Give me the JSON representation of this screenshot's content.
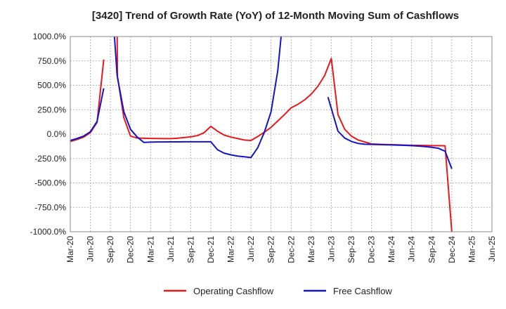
{
  "chart_data": {
    "type": "line",
    "title": "[3420]  Trend of Growth Rate (YoY) of 12-Month Moving Sum of Cashflows",
    "xlabel": "",
    "ylabel": "",
    "ylim": [
      -1000,
      1000
    ],
    "y_ticks": [
      1000,
      750,
      500,
      250,
      0,
      -250,
      -500,
      -750,
      -1000
    ],
    "y_tick_labels": [
      "1000.0%",
      "750.0%",
      "500.0%",
      "250.0%",
      "0.0%",
      "-250.0%",
      "-500.0%",
      "-750.0%",
      "-1000.0%"
    ],
    "x_tick_labels": [
      "Mar-20",
      "Jun-20",
      "Sep-20",
      "Dec-20",
      "Mar-21",
      "Jun-21",
      "Sep-21",
      "Dec-21",
      "Mar-22",
      "Jun-22",
      "Sep-22",
      "Dec-22",
      "Mar-23",
      "Jun-23",
      "Sep-23",
      "Dec-23",
      "Mar-24",
      "Jun-24",
      "Sep-24",
      "Dec-24",
      "Mar-25",
      "Jun-25"
    ],
    "grid": true,
    "legend_position": "bottom-center",
    "series": [
      {
        "name": "Operating Cashflow",
        "color": "#e8191a",
        "points": [
          [
            0,
            -75
          ],
          [
            1,
            -55
          ],
          [
            2,
            -30
          ],
          [
            3,
            15
          ],
          [
            4,
            120
          ],
          [
            5,
            765
          ],
          [
            6,
            null
          ],
          [
            7,
            1000
          ],
          [
            7.05,
            590
          ],
          [
            8,
            170
          ],
          [
            9,
            -20
          ],
          [
            10,
            -40
          ],
          [
            11,
            -42
          ],
          [
            12,
            -44
          ],
          [
            13,
            -45
          ],
          [
            14,
            -46
          ],
          [
            15,
            -46
          ],
          [
            16,
            -42
          ],
          [
            17,
            -35
          ],
          [
            18,
            -28
          ],
          [
            19,
            -15
          ],
          [
            20,
            15
          ],
          [
            21,
            80
          ],
          [
            22,
            30
          ],
          [
            23,
            -10
          ],
          [
            24,
            -30
          ],
          [
            25,
            -45
          ],
          [
            26,
            -60
          ],
          [
            27,
            -65
          ],
          [
            28,
            -25
          ],
          [
            29,
            20
          ],
          [
            30,
            70
          ],
          [
            31,
            135
          ],
          [
            32,
            200
          ],
          [
            33,
            270
          ],
          [
            34,
            305
          ],
          [
            35,
            350
          ],
          [
            36,
            410
          ],
          [
            37,
            490
          ],
          [
            38,
            600
          ],
          [
            39,
            775
          ],
          [
            40,
            200
          ],
          [
            41,
            50
          ],
          [
            42,
            -20
          ],
          [
            43,
            -60
          ],
          [
            44,
            -80
          ],
          [
            45,
            -100
          ],
          [
            46,
            -103
          ],
          [
            47,
            -106
          ],
          [
            48,
            -108
          ],
          [
            49,
            -110
          ],
          [
            50,
            -112
          ],
          [
            51,
            -114
          ],
          [
            52,
            -115
          ],
          [
            53,
            -116
          ],
          [
            54,
            -118
          ],
          [
            55,
            -118
          ],
          [
            56,
            -120
          ],
          [
            57,
            -1000
          ]
        ]
      },
      {
        "name": "Free Cashflow",
        "color": "#1414c8",
        "points": [
          [
            0,
            -65
          ],
          [
            1,
            -45
          ],
          [
            2,
            -20
          ],
          [
            3,
            25
          ],
          [
            4,
            130
          ],
          [
            5,
            470
          ],
          [
            6,
            null
          ],
          [
            6.6,
            1000
          ],
          [
            7,
            600
          ],
          [
            8,
            230
          ],
          [
            9,
            50
          ],
          [
            10,
            -30
          ],
          [
            11,
            -85
          ],
          [
            12,
            -82
          ],
          [
            13,
            -80
          ],
          [
            14,
            -80
          ],
          [
            15,
            -79
          ],
          [
            16,
            -79
          ],
          [
            17,
            -78
          ],
          [
            18,
            -78
          ],
          [
            19,
            -78
          ],
          [
            20,
            -78
          ],
          [
            21,
            -78
          ],
          [
            22,
            -160
          ],
          [
            23,
            -195
          ],
          [
            24,
            -212
          ],
          [
            25,
            -225
          ],
          [
            26,
            -232
          ],
          [
            27,
            -240
          ],
          [
            28,
            -140
          ],
          [
            29,
            20
          ],
          [
            30,
            230
          ],
          [
            31,
            650
          ],
          [
            31.5,
            1000
          ],
          [
            32,
            null
          ],
          [
            38.5,
            380
          ],
          [
            40,
            30
          ],
          [
            41,
            -40
          ],
          [
            42,
            -75
          ],
          [
            43,
            -95
          ],
          [
            44,
            -103
          ],
          [
            45,
            -105
          ],
          [
            46,
            -107
          ],
          [
            47,
            -109
          ],
          [
            48,
            -111
          ],
          [
            49,
            -113
          ],
          [
            50,
            -115
          ],
          [
            51,
            -118
          ],
          [
            52,
            -122
          ],
          [
            53,
            -128
          ],
          [
            54,
            -135
          ],
          [
            55,
            -145
          ],
          [
            56,
            -175
          ],
          [
            57,
            -355
          ]
        ]
      }
    ]
  }
}
